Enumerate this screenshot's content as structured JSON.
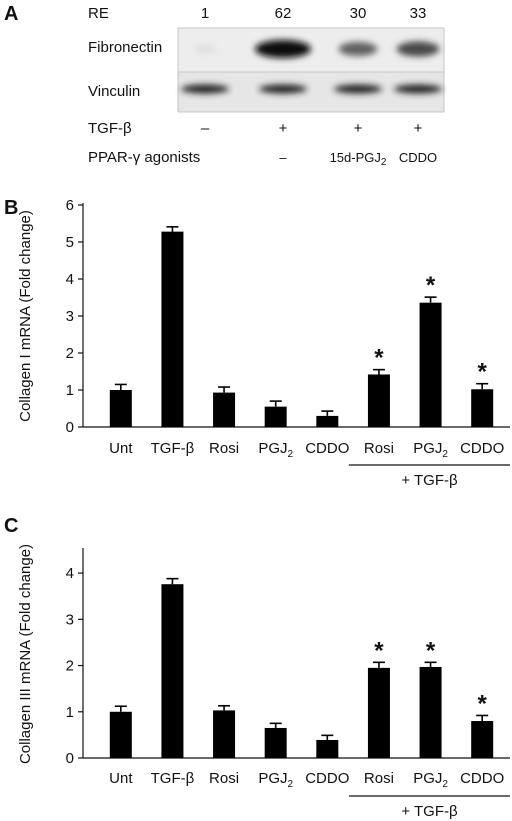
{
  "panel_a": {
    "letter": "A",
    "re_label": "RE",
    "re_values": [
      "1",
      "62",
      "30",
      "33"
    ],
    "blot_rows": [
      "Fibronectin",
      "Vinculin"
    ],
    "fibronectin_intensity": [
      0.06,
      1.0,
      0.62,
      0.72
    ],
    "vinculin_intensity": [
      0.9,
      0.9,
      0.9,
      0.9
    ],
    "tgf_label": "TGF-β",
    "tgf_marks": [
      "–",
      "+",
      "+",
      "+"
    ],
    "agonist_label": "PPAR-γ  agonists",
    "agonist_marks": [
      "",
      "–",
      "15d-PGJ",
      "CDDO"
    ],
    "agonist_subscript": "2"
  },
  "chart_data": [
    {
      "type": "bar",
      "panel": "B",
      "categories": [
        "Unt",
        "TGF-β",
        "Rosi",
        "PGJ2",
        "CDDO",
        "Rosi",
        "PGJ2",
        "CDDO"
      ],
      "values": [
        1.0,
        5.28,
        0.93,
        0.55,
        0.3,
        1.42,
        3.36,
        1.02
      ],
      "errors": [
        0.15,
        0.13,
        0.15,
        0.15,
        0.13,
        0.13,
        0.15,
        0.15
      ],
      "significant": [
        false,
        false,
        false,
        false,
        false,
        true,
        true,
        true
      ],
      "ylabel": "Collagen I mRNA (Fold change)",
      "ylim": [
        0,
        6
      ],
      "yticks": [
        0,
        1,
        2,
        3,
        4,
        5,
        6
      ],
      "group_label": "+ TGF-β",
      "grid": false
    },
    {
      "type": "bar",
      "panel": "C",
      "categories": [
        "Unt",
        "TGF-β",
        "Rosi",
        "PGJ2",
        "CDDO",
        "Rosi",
        "PGJ2",
        "CDDO"
      ],
      "values": [
        1.0,
        3.76,
        1.03,
        0.65,
        0.39,
        1.95,
        1.97,
        0.8
      ],
      "errors": [
        0.12,
        0.12,
        0.1,
        0.1,
        0.1,
        0.12,
        0.1,
        0.12
      ],
      "significant": [
        false,
        false,
        false,
        false,
        false,
        true,
        true,
        true
      ],
      "ylabel": "Collagen III mRNA (Fold change)",
      "ylim": [
        0,
        4.5
      ],
      "yticks": [
        0,
        1,
        2,
        3,
        4
      ],
      "group_label": "+ TGF-β",
      "grid": false
    }
  ],
  "significance_marker": "*"
}
